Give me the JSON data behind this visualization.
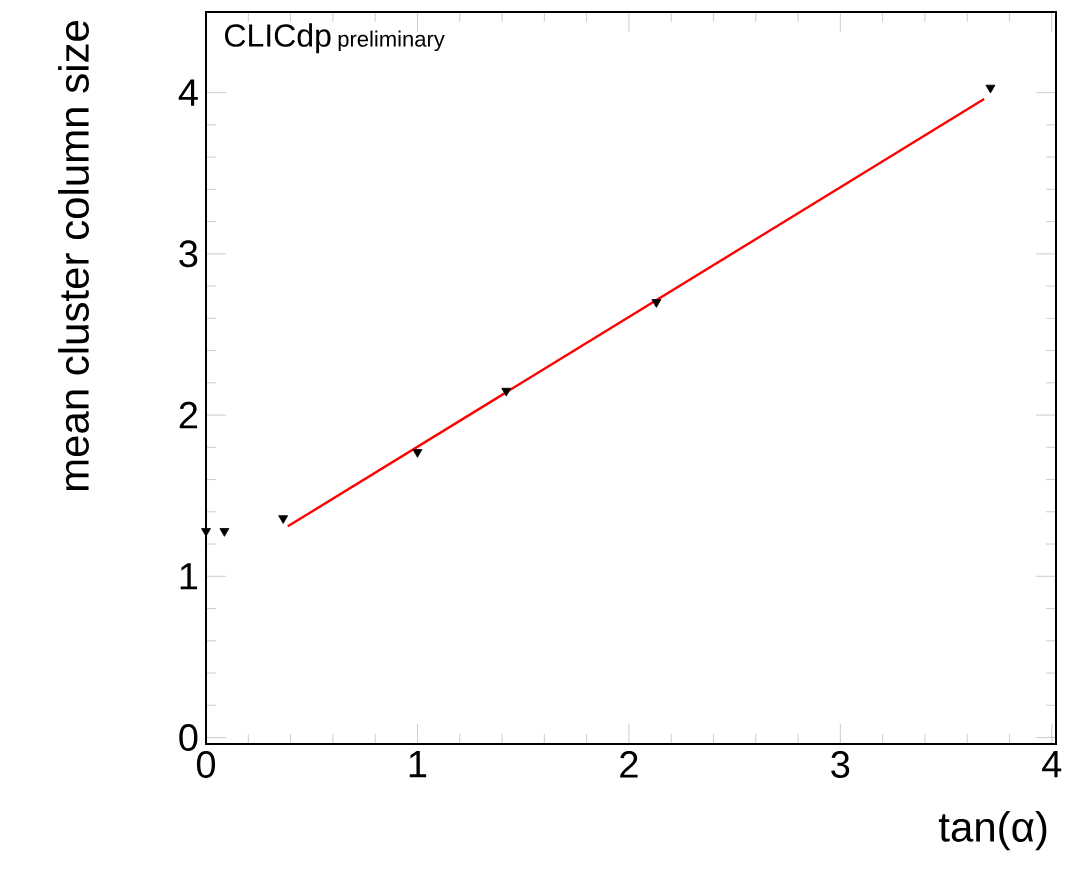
{
  "chart_data": {
    "type": "scatter",
    "xlabel": "tan(α)",
    "ylabel": "mean cluster column size",
    "xlim": [
      0,
      4.02
    ],
    "ylim": [
      -0.04,
      4.5
    ],
    "xticks": [
      0,
      1,
      2,
      3,
      4
    ],
    "yticks": [
      0,
      1,
      2,
      3,
      4
    ],
    "marker": "triangle",
    "grid": false,
    "annotations": [
      "CLICdp",
      "preliminary"
    ],
    "series": [
      {
        "color": "#000000",
        "x": [
          0.0,
          0.087,
          0.365,
          1.0,
          1.42,
          2.13,
          3.71
        ],
        "values": [
          1.28,
          1.28,
          1.36,
          1.77,
          2.15,
          2.7,
          4.03
        ]
      },
      {
        "type": "line",
        "color": "#ff0000",
        "marker": "none",
        "line_style": "solid",
        "x": [
          0.387,
          3.68
        ],
        "values": [
          1.31,
          3.96
        ]
      }
    ]
  }
}
